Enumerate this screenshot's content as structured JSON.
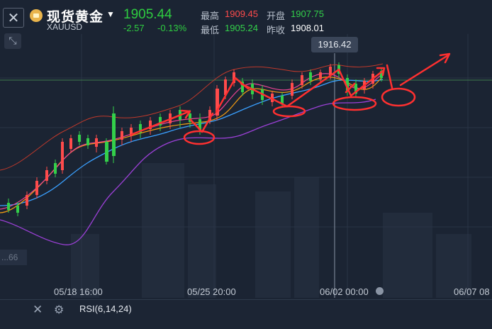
{
  "header": {
    "title": "现货黄金",
    "symbol": "XAUUSD",
    "price": "1905.44",
    "change": "-2.57",
    "change_pct": "-0.13%",
    "high_label": "最高",
    "high_value": "1909.45",
    "open_label": "开盘",
    "open_value": "1907.75",
    "low_label": "最低",
    "low_value": "1905.24",
    "prev_close_label": "昨收",
    "prev_close_value": "1908.01"
  },
  "chart": {
    "tooltip_value": "1916.42",
    "y_axis_partial": "...66",
    "x_labels": [
      "05/18 16:00",
      "05/25 20:00",
      "06/02 00:00",
      "06/07 08"
    ]
  },
  "indicator": {
    "label": "RSI(6,14,24)"
  },
  "colors": {
    "up": "#ff4b4b",
    "down": "#33d04a",
    "annotation": "#ff3030"
  },
  "icons": [
    "close-icon",
    "gold-coin-icon",
    "chevron-down-icon",
    "crosshair-tool-icon",
    "settings-gear-icon"
  ]
}
